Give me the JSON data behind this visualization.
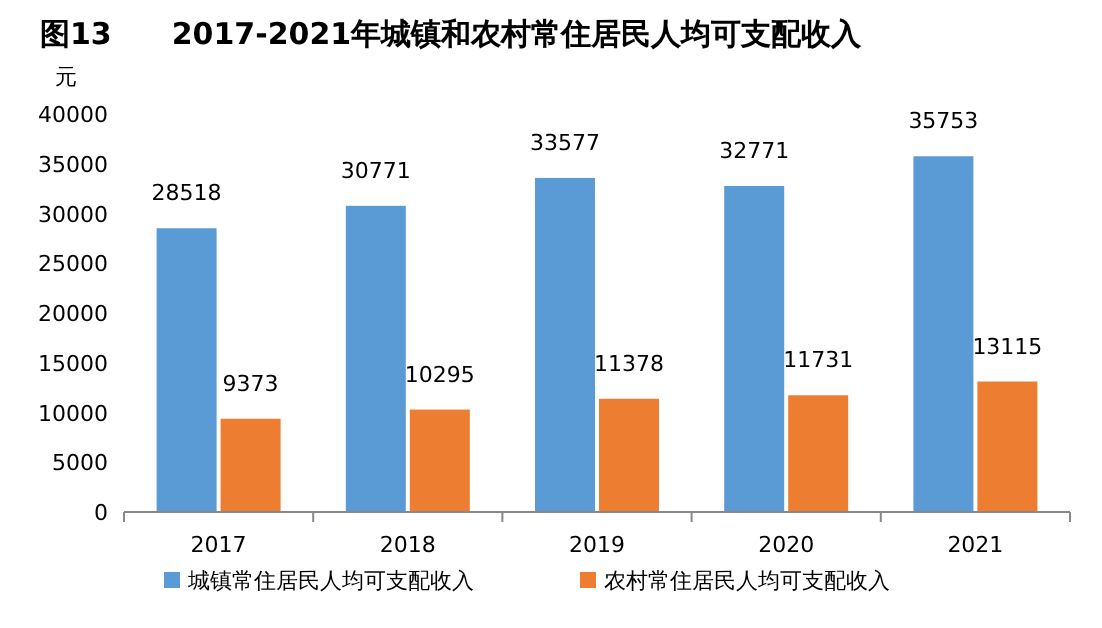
{
  "chart_data": {
    "type": "bar",
    "title": "图13　　2017-2021年城镇和农村常住居民人均可支配收入",
    "ylabel": "元",
    "categories": [
      "2017",
      "2018",
      "2019",
      "2020",
      "2021"
    ],
    "series": [
      {
        "name": "城镇常住居民人均可支配收入",
        "color": "#5b9bd5",
        "values": [
          28518,
          30771,
          33577,
          32771,
          35753
        ]
      },
      {
        "name": "农村常住居民人均可支配收入",
        "color": "#ed7d31",
        "values": [
          9373,
          10295,
          11378,
          11731,
          13115
        ]
      }
    ],
    "ylim": [
      0,
      40000
    ],
    "yticks": [
      0,
      5000,
      10000,
      15000,
      20000,
      25000,
      30000,
      35000,
      40000
    ],
    "data_labels": true,
    "legend": "bottom",
    "grid": false
  }
}
